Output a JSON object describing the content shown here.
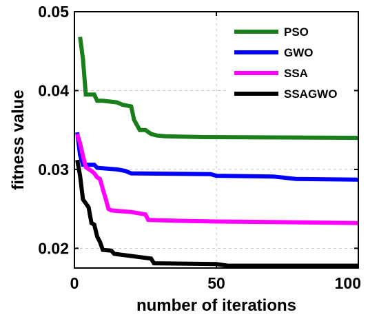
{
  "chart_data": {
    "type": "line",
    "title": "",
    "xlabel": "number of iterations",
    "ylabel": "fitness value",
    "xlim": [
      0,
      100
    ],
    "ylim": [
      0.0175,
      0.05
    ],
    "xticks": [
      0,
      50,
      100
    ],
    "yticks": [
      0.02,
      0.03,
      0.04,
      0.05
    ],
    "xtick_labels": [
      "0",
      "50",
      "100"
    ],
    "ytick_labels": [
      "0.02",
      "0.03",
      "0.04",
      "0.05"
    ],
    "grid": true,
    "legend_position": "top-right",
    "series": [
      {
        "name": "PSO",
        "color": "#1a7f1a",
        "points": [
          [
            2,
            0.0468
          ],
          [
            3,
            0.044
          ],
          [
            4,
            0.0395
          ],
          [
            7,
            0.0395
          ],
          [
            8,
            0.0387
          ],
          [
            10,
            0.0387
          ],
          [
            15,
            0.0385
          ],
          [
            17,
            0.0382
          ],
          [
            20,
            0.038
          ],
          [
            21,
            0.0363
          ],
          [
            23,
            0.035
          ],
          [
            25,
            0.035
          ],
          [
            27,
            0.0345
          ],
          [
            29,
            0.0343
          ],
          [
            32,
            0.0342
          ],
          [
            46,
            0.0341
          ],
          [
            100,
            0.034
          ]
        ]
      },
      {
        "name": "GWO",
        "color": "#0000ff",
        "points": [
          [
            1,
            0.0347
          ],
          [
            2,
            0.0318
          ],
          [
            3,
            0.0306
          ],
          [
            7,
            0.0306
          ],
          [
            8,
            0.0302
          ],
          [
            15,
            0.03
          ],
          [
            18,
            0.0298
          ],
          [
            20,
            0.0295
          ],
          [
            48,
            0.0294
          ],
          [
            50,
            0.0292
          ],
          [
            70,
            0.0291
          ],
          [
            78,
            0.0288
          ],
          [
            100,
            0.0287
          ]
        ]
      },
      {
        "name": "SSA",
        "color": "#ff00ff",
        "points": [
          [
            1,
            0.0345
          ],
          [
            2,
            0.0333
          ],
          [
            3,
            0.0317
          ],
          [
            4,
            0.0303
          ],
          [
            6,
            0.0298
          ],
          [
            7,
            0.0295
          ],
          [
            8,
            0.029
          ],
          [
            9,
            0.0288
          ],
          [
            10,
            0.0275
          ],
          [
            11,
            0.0263
          ],
          [
            12,
            0.025
          ],
          [
            13,
            0.0248
          ],
          [
            20,
            0.0246
          ],
          [
            25,
            0.0243
          ],
          [
            26,
            0.0236
          ],
          [
            35,
            0.0235
          ],
          [
            50,
            0.0234
          ],
          [
            77,
            0.0233
          ],
          [
            100,
            0.0232
          ]
        ]
      },
      {
        "name": "SSAGWO",
        "color": "#000000",
        "points": [
          [
            1,
            0.0312
          ],
          [
            2,
            0.0292
          ],
          [
            3,
            0.0262
          ],
          [
            5,
            0.0252
          ],
          [
            6,
            0.0232
          ],
          [
            7,
            0.023
          ],
          [
            8,
            0.0215
          ],
          [
            9,
            0.0208
          ],
          [
            10,
            0.0198
          ],
          [
            13,
            0.0197
          ],
          [
            14,
            0.0193
          ],
          [
            27,
            0.0187
          ],
          [
            28,
            0.0181
          ],
          [
            50,
            0.018
          ],
          [
            54,
            0.0178
          ],
          [
            100,
            0.0178
          ]
        ]
      }
    ]
  }
}
